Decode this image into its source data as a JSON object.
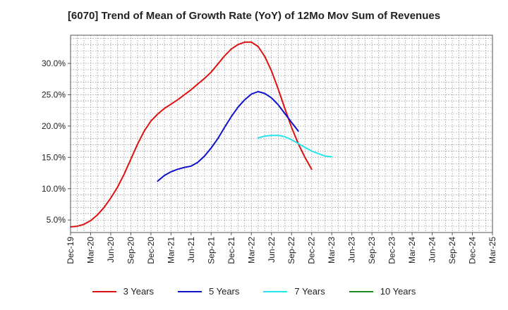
{
  "chart_data": {
    "type": "line",
    "title": "[6070]  Trend of Mean of Growth Rate (YoY) of 12Mo Mov Sum of Revenues",
    "xlabel": "",
    "ylabel": "",
    "x_tick_labels": [
      "Dec-19",
      "Mar-20",
      "Jun-20",
      "Sep-20",
      "Dec-20",
      "Mar-21",
      "Jun-21",
      "Sep-21",
      "Dec-21",
      "Mar-22",
      "Jun-22",
      "Sep-22",
      "Dec-22",
      "Mar-23",
      "Jun-23",
      "Sep-23",
      "Dec-23",
      "Mar-24",
      "Jun-24",
      "Sep-24",
      "Dec-24",
      "Mar-25"
    ],
    "y_ticks": [
      5.0,
      10.0,
      15.0,
      20.0,
      25.0,
      30.0
    ],
    "y_tick_labels": [
      "5.0%",
      "10.0%",
      "15.0%",
      "20.0%",
      "25.0%",
      "30.0%"
    ],
    "ylim": [
      3.0,
      34.5
    ],
    "grid": true,
    "legend_position": "bottom",
    "series": [
      {
        "name": "3 Years",
        "color": "#dd1111",
        "start_index": 0,
        "values": [
          3.9,
          4.0,
          4.3,
          4.9,
          5.8,
          7.0,
          8.5,
          10.2,
          12.3,
          14.7,
          17.1,
          19.2,
          20.8,
          21.9,
          22.8,
          23.5,
          24.2,
          25.0,
          25.8,
          26.7,
          27.6,
          28.6,
          29.9,
          31.2,
          32.3,
          33.0,
          33.4,
          33.4,
          32.7,
          31.1,
          28.8,
          25.9,
          22.8,
          19.8,
          17.2,
          15.0,
          13.1
        ]
      },
      {
        "name": "5 Years",
        "color": "#1111cc",
        "start_index": 13,
        "values": [
          11.2,
          12.1,
          12.7,
          13.1,
          13.4,
          13.6,
          14.2,
          15.2,
          16.5,
          18.0,
          19.8,
          21.5,
          23.0,
          24.2,
          25.1,
          25.5,
          25.2,
          24.5,
          23.4,
          22.0,
          20.6,
          19.2
        ]
      },
      {
        "name": "7 Years",
        "color": "#22e5ee",
        "start_index": 28,
        "values": [
          18.1,
          18.4,
          18.5,
          18.5,
          18.3,
          17.8,
          17.2,
          16.6,
          16.0,
          15.6,
          15.2,
          15.1
        ]
      },
      {
        "name": "10 Years",
        "color": "#228822",
        "start_index": 0,
        "values": []
      }
    ]
  }
}
